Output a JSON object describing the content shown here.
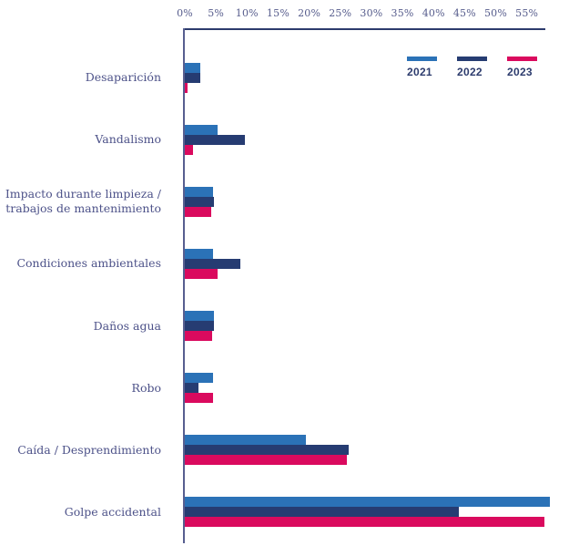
{
  "chart_data": {
    "type": "bar",
    "orientation": "horizontal",
    "title": "",
    "xlabel": "",
    "ylabel": "",
    "xlim": [
      0,
      59
    ],
    "grid": false,
    "legend_position": "top-right",
    "x_ticks": [
      "0%",
      "5%",
      "10%",
      "15%",
      "20%",
      "25%",
      "30%",
      "35%",
      "40%",
      "45%",
      "50%",
      "55%"
    ],
    "x_tick_values": [
      0,
      5,
      10,
      15,
      20,
      25,
      30,
      35,
      40,
      45,
      50,
      55
    ],
    "categories": [
      "Desaparición",
      "Vandalismo",
      "Impacto durante limpieza / trabajos de mantenimiento",
      "Condiciones ambientales",
      "Daños agua",
      "Robo",
      "Caída / Desprendimiento",
      "Golpe accidental"
    ],
    "series": [
      {
        "name": "2021",
        "color": "#2b72b7",
        "values": [
          2.5,
          5.2,
          4.5,
          4.5,
          4.7,
          4.5,
          19.5,
          58.7
        ]
      },
      {
        "name": "2022",
        "color": "#263c72",
        "values": [
          2.5,
          9.7,
          4.7,
          8.9,
          4.7,
          2.2,
          26.4,
          44.1
        ]
      },
      {
        "name": "2023",
        "color": "#da0a5e",
        "values": [
          0.4,
          1.3,
          4.3,
          5.3,
          4.4,
          4.5,
          26.1,
          57.8
        ]
      }
    ]
  },
  "colors": {
    "axis_line": "#2c3b6d",
    "vertical_line": "#575e90",
    "tick_text": "#565c8c",
    "category_text": "#4d5289",
    "legend_text": "#2c3b6d",
    "background": "#ffffff"
  }
}
